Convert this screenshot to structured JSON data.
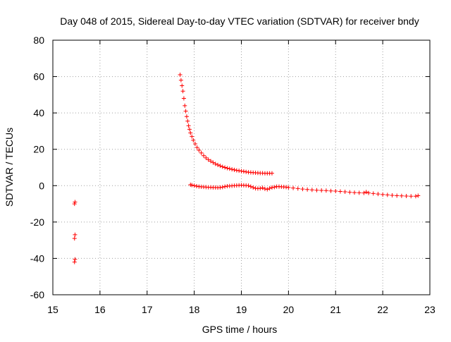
{
  "chart_data": {
    "type": "scatter",
    "title": "Day 048 of 2015, Sidereal Day-to-day VTEC variation (SDTVAR) for receiver bndy",
    "xlabel": "GPS time / hours",
    "ylabel": "SDTVAR / TECUs",
    "xlim": [
      15,
      23
    ],
    "ylim": [
      -60,
      80
    ],
    "xticks": [
      15,
      16,
      17,
      18,
      19,
      20,
      21,
      22,
      23
    ],
    "yticks": [
      -60,
      -40,
      -20,
      0,
      20,
      40,
      60,
      80
    ],
    "xtick_labels": [
      "15",
      "16",
      "17",
      "18",
      "19",
      "20",
      "21",
      "22",
      "23"
    ],
    "ytick_labels": [
      "-60",
      "-40",
      "-20",
      "0",
      "20",
      "40",
      "60",
      "80"
    ],
    "grid": true,
    "marker": "+",
    "colors": {
      "series": "#ff0000",
      "grid": "#a0a0a0",
      "axis": "#000000"
    },
    "series": [
      {
        "name": "isolated-points",
        "x": [
          15.46,
          15.47,
          15.46,
          15.47,
          15.46,
          15.47
        ],
        "y": [
          -10,
          -9,
          -29,
          -27,
          -42,
          -40.5
        ]
      },
      {
        "name": "decay-branch",
        "x": [
          17.7,
          17.72,
          17.74,
          17.76,
          17.78,
          17.8,
          17.82,
          17.84,
          17.86,
          17.88,
          17.9,
          17.92,
          17.95,
          17.98,
          18.02,
          18.06,
          18.1,
          18.15,
          18.2,
          18.25,
          18.3,
          18.35,
          18.4,
          18.45,
          18.5,
          18.55,
          18.6,
          18.65,
          18.7,
          18.75,
          18.8,
          18.85,
          18.9,
          18.95,
          19.0,
          19.05,
          19.1,
          19.15,
          19.2,
          19.25,
          19.3,
          19.35,
          19.4,
          19.45,
          19.5,
          19.55,
          19.6,
          19.65
        ],
        "y": [
          61,
          58,
          55,
          52,
          48,
          44,
          41,
          38,
          35.5,
          33,
          31,
          29,
          27,
          25,
          23,
          21,
          19.5,
          18,
          16.5,
          15.3,
          14.3,
          13.5,
          12.7,
          12,
          11.4,
          10.9,
          10.4,
          10,
          9.6,
          9.3,
          9,
          8.7,
          8.4,
          8.2,
          8,
          7.8,
          7.6,
          7.4,
          7.3,
          7.2,
          7.1,
          7,
          6.9,
          6.9,
          6.8,
          6.8,
          6.8,
          6.8
        ]
      },
      {
        "name": "baseline-branch",
        "x": [
          17.92,
          17.95,
          18.0,
          18.05,
          18.1,
          18.15,
          18.2,
          18.25,
          18.3,
          18.35,
          18.4,
          18.45,
          18.5,
          18.55,
          18.6,
          18.65,
          18.7,
          18.75,
          18.8,
          18.85,
          18.9,
          18.95,
          19.0,
          19.05,
          19.1,
          19.15,
          19.2,
          19.25,
          19.3,
          19.35,
          19.4,
          19.45,
          19.5,
          19.55,
          19.6,
          19.65,
          19.7,
          19.75,
          19.8,
          19.85,
          19.9,
          19.95,
          20.0,
          20.1,
          20.2,
          20.3,
          20.4,
          20.5,
          20.6,
          20.7,
          20.8,
          20.9,
          21.0,
          21.1,
          21.2,
          21.3,
          21.4,
          21.5,
          21.6,
          21.65,
          21.7,
          21.8,
          21.9,
          22.0,
          22.1,
          22.2,
          22.3,
          22.4,
          22.5,
          22.6,
          22.7,
          22.75
        ],
        "y": [
          0.5,
          0.3,
          0,
          -0.3,
          -0.5,
          -0.6,
          -0.7,
          -0.8,
          -0.9,
          -0.9,
          -1.0,
          -1.0,
          -1.1,
          -1.0,
          -0.8,
          -0.5,
          -0.3,
          -0.2,
          -0.1,
          0,
          0.1,
          0.2,
          0.3,
          0.2,
          0.1,
          0,
          -0.5,
          -1.0,
          -1.5,
          -1.6,
          -1.5,
          -1.2,
          -1.8,
          -2.0,
          -1.5,
          -1.0,
          -0.8,
          -0.5,
          -0.5,
          -0.6,
          -0.7,
          -0.8,
          -1.0,
          -1.3,
          -1.6,
          -1.9,
          -2.1,
          -2.3,
          -2.5,
          -2.6,
          -2.7,
          -2.9,
          -3.0,
          -3.2,
          -3.4,
          -3.6,
          -3.8,
          -3.9,
          -4.0,
          -3.5,
          -4.0,
          -4.3,
          -4.6,
          -4.9,
          -5.1,
          -5.3,
          -5.5,
          -5.6,
          -5.7,
          -5.8,
          -5.8,
          -5.5
        ]
      }
    ]
  }
}
